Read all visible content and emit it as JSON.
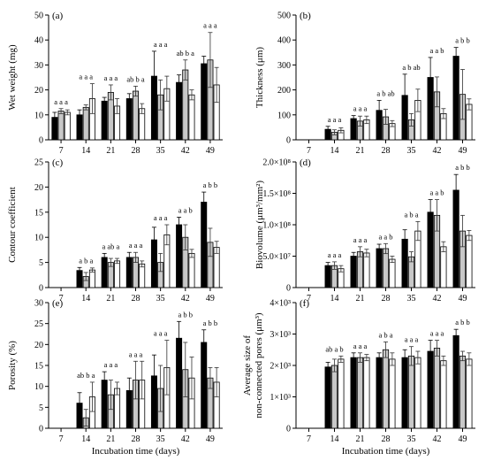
{
  "figure": {
    "xlabel": "Incubation time (days)",
    "categories": [
      "7",
      "14",
      "21",
      "28",
      "35",
      "42",
      "49"
    ],
    "series_colors": [
      "#000000",
      "#c8c8c8",
      "#ffffff"
    ]
  },
  "chart_data": [
    {
      "type": "bar",
      "panel": "(a)",
      "ylabel": "Wet weight (mg)",
      "ylim": [
        0,
        50
      ],
      "yticks": [
        "0",
        "10",
        "20",
        "30",
        "40",
        "50"
      ],
      "categories": [
        "7",
        "14",
        "21",
        "28",
        "35",
        "42",
        "49"
      ],
      "series": [
        {
          "values": [
            9,
            10,
            15.5,
            16.5,
            25.5,
            23,
            30.5
          ],
          "errors": [
            2,
            2,
            1.5,
            2,
            10,
            3,
            3
          ]
        },
        {
          "values": [
            11.5,
            13,
            19,
            19.5,
            18,
            28,
            32
          ],
          "errors": [
            1,
            1,
            3,
            2,
            6,
            4,
            11
          ]
        },
        {
          "values": [
            11,
            16.5,
            13.5,
            12.5,
            20.5,
            18,
            22
          ],
          "errors": [
            1,
            6,
            3,
            2,
            5,
            2,
            7
          ]
        }
      ],
      "letters": [
        "a a a",
        "a a a",
        "a a a",
        "ab b a",
        "a a a",
        "ab b a",
        "a a a"
      ]
    },
    {
      "type": "bar",
      "panel": "(b)",
      "ylabel": "Thickness (μm)",
      "ylim": [
        0,
        500
      ],
      "yticks": [
        "0",
        "100",
        "200",
        "300",
        "400",
        "500"
      ],
      "categories": [
        "7",
        "14",
        "21",
        "28",
        "35",
        "42",
        "49"
      ],
      "series": [
        {
          "values": [
            null,
            42,
            85,
            118,
            178,
            250,
            335
          ],
          "errors": [
            null,
            12,
            12,
            40,
            85,
            80,
            35
          ]
        },
        {
          "values": [
            null,
            30,
            75,
            92,
            80,
            192,
            182
          ],
          "errors": [
            null,
            10,
            20,
            30,
            25,
            60,
            100
          ]
        },
        {
          "values": [
            null,
            38,
            80,
            65,
            158,
            105,
            142
          ],
          "errors": [
            null,
            10,
            15,
            12,
            45,
            20,
            22
          ]
        }
      ],
      "letters": [
        "",
        "a a a",
        "a a a",
        "a b ab",
        "a b ab",
        "a a b",
        "a b b"
      ]
    },
    {
      "type": "bar",
      "panel": "(c)",
      "ylabel": "Contour coefficient",
      "ylim": [
        0,
        25
      ],
      "yticks": [
        "0",
        "5",
        "10",
        "15",
        "20",
        "25"
      ],
      "categories": [
        "7",
        "14",
        "21",
        "28",
        "35",
        "42",
        "49"
      ],
      "series": [
        {
          "values": [
            null,
            3.4,
            6.0,
            6.0,
            9.5,
            12.5,
            17.0
          ],
          "errors": [
            null,
            0.6,
            0.8,
            1.0,
            2.5,
            1.5,
            2.0
          ]
        },
        {
          "values": [
            null,
            2.2,
            5.0,
            6.0,
            5.0,
            10.0,
            9.0
          ],
          "errors": [
            null,
            0.8,
            0.8,
            1.0,
            1.8,
            2.5,
            2.8
          ]
        },
        {
          "values": [
            null,
            3.5,
            5.3,
            4.7,
            10.5,
            6.8,
            8.0
          ],
          "errors": [
            null,
            0.4,
            0.5,
            0.6,
            2.0,
            0.8,
            1.2
          ]
        }
      ],
      "letters": [
        "",
        "a b a",
        "a ab a",
        "a a a",
        "a a a",
        "a a b",
        "a b b"
      ]
    },
    {
      "type": "bar",
      "panel": "(d)",
      "ylabel": "Biovolume (μm³/mm²)",
      "ylim": [
        0,
        200000000
      ],
      "yticks": [
        "0",
        "5.0×10⁷",
        "1.0×10⁸",
        "1.5×10⁸",
        "2.0×10⁸"
      ],
      "ytick_values": [
        0,
        50000000,
        100000000,
        150000000,
        200000000
      ],
      "categories": [
        "7",
        "14",
        "21",
        "28",
        "35",
        "42",
        "49"
      ],
      "series": [
        {
          "values": [
            null,
            35000000,
            50000000,
            62000000,
            77000000,
            120000000,
            155000000
          ],
          "errors": [
            null,
            5000000,
            6000000,
            7000000,
            15000000,
            20000000,
            25000000
          ]
        },
        {
          "values": [
            null,
            35000000,
            57000000,
            62000000,
            49000000,
            115000000,
            90000000
          ],
          "errors": [
            null,
            6000000,
            8000000,
            8000000,
            8000000,
            25000000,
            25000000
          ]
        },
        {
          "values": [
            null,
            30000000,
            55000000,
            45000000,
            90000000,
            65000000,
            83000000
          ],
          "errors": [
            null,
            5000000,
            6000000,
            5000000,
            15000000,
            8000000,
            8000000
          ]
        }
      ],
      "letters": [
        "",
        "a a a",
        "a a a",
        "a a b",
        "a b a",
        "a a b",
        "a b b"
      ]
    },
    {
      "type": "bar",
      "panel": "(e)",
      "ylabel": "Porosity (%)",
      "ylim": [
        0,
        30
      ],
      "yticks": [
        "0",
        "5",
        "10",
        "15",
        "20",
        "25",
        "30"
      ],
      "categories": [
        "7",
        "14",
        "21",
        "28",
        "35",
        "42",
        "49"
      ],
      "series": [
        {
          "values": [
            null,
            6.0,
            11.5,
            9.0,
            12.5,
            21.5,
            20.5
          ],
          "errors": [
            null,
            2.5,
            2.0,
            3.0,
            5.0,
            4.0,
            3.0
          ]
        },
        {
          "values": [
            null,
            2.5,
            8.0,
            11.5,
            9.5,
            14.0,
            12.0
          ],
          "errors": [
            null,
            2.0,
            3.5,
            4.5,
            5.5,
            6.5,
            2.5
          ]
        },
        {
          "values": [
            null,
            7.5,
            9.5,
            11.5,
            14.5,
            12.0,
            11.0
          ],
          "errors": [
            null,
            3.5,
            1.5,
            4.5,
            6.5,
            5.0,
            3.5
          ]
        }
      ],
      "letters": [
        "",
        "ab b a",
        "a a a",
        "a a a",
        "a a a",
        "a b b",
        "a b b"
      ]
    },
    {
      "type": "bar",
      "panel": "(f)",
      "ylabel_line1": "Average size of",
      "ylabel_line2": "non-connected pores (μm³)",
      "ylim": [
        0,
        4000
      ],
      "yticks": [
        "0",
        "1×10³",
        "2×10³",
        "3×10³",
        "4×10³"
      ],
      "ytick_values": [
        0,
        1000,
        2000,
        3000,
        4000
      ],
      "categories": [
        "7",
        "14",
        "21",
        "28",
        "35",
        "42",
        "49"
      ],
      "series": [
        {
          "values": [
            null,
            1950,
            2250,
            2250,
            2250,
            2450,
            2950
          ],
          "errors": [
            null,
            150,
            150,
            150,
            250,
            350,
            200
          ]
        },
        {
          "values": [
            null,
            2000,
            2250,
            2500,
            2300,
            2550,
            2300
          ],
          "errors": [
            null,
            200,
            150,
            250,
            300,
            250,
            150
          ]
        },
        {
          "values": [
            null,
            2200,
            2250,
            2200,
            2250,
            2150,
            2200
          ],
          "errors": [
            null,
            100,
            100,
            200,
            200,
            150,
            200
          ]
        }
      ],
      "letters": [
        "",
        "ab a b",
        "a a a",
        "a b a",
        "a a a",
        "a a a",
        "a b b"
      ]
    }
  ]
}
